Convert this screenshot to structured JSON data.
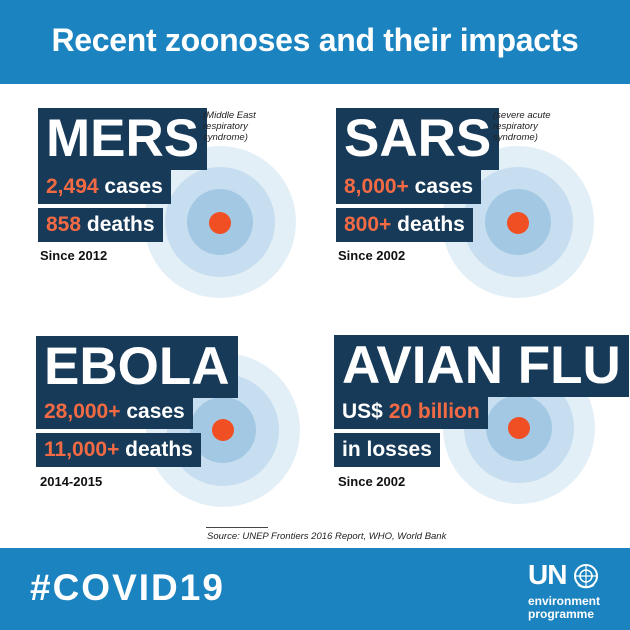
{
  "header": {
    "title": "Recent zoonoses and their impacts"
  },
  "cards": {
    "mers": {
      "name": "MERS",
      "note": [
        "(Middle East",
        "respiratory",
        "syndrome)"
      ],
      "stat1_highlight": "2,494",
      "stat1_rest": " cases",
      "stat2_highlight": "858",
      "stat2_rest": " deaths",
      "since": "Since 2012"
    },
    "sars": {
      "name": "SARS",
      "note": [
        "(severe acute",
        "respiratory",
        "syndrome)"
      ],
      "stat1_highlight": "8,000+",
      "stat1_rest": " cases",
      "stat2_highlight": "800+",
      "stat2_rest": " deaths",
      "since": "Since 2002"
    },
    "ebola": {
      "name": "EBOLA",
      "stat1_highlight": "28,000+",
      "stat1_rest": " cases",
      "stat2_highlight": "11,000+",
      "stat2_rest": " deaths",
      "since": "2014-2015"
    },
    "avian": {
      "name": "AVIAN FLU",
      "stat1_prefix": "US$ ",
      "stat1_highlight": "20 billion",
      "stat2_text": "in losses",
      "since": "Since 2002"
    }
  },
  "source": "Source: UNEP Frontiers 2016 Report, WHO, World Bank",
  "footer": {
    "hashtag": "#COVID19",
    "logo_un": "UN",
    "logo_line1": "environment",
    "logo_line2": "programme"
  },
  "colors": {
    "header_bg": "#1b83c0",
    "box_bg": "#173a58",
    "highlight": "#f26a43",
    "dot": "#f04e23",
    "ring_outer": "#e3eff7",
    "ring_middle": "#c7def0",
    "ring_inner": "#a3c8e3"
  }
}
